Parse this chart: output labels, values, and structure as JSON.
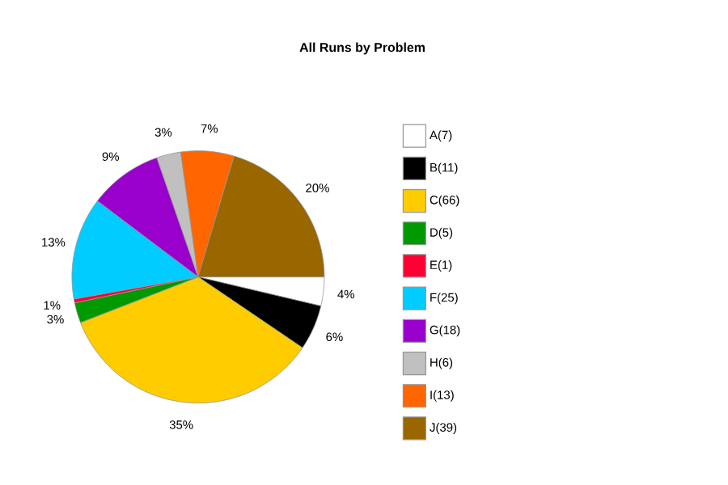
{
  "chart_data": {
    "type": "pie",
    "title": "All Runs by Problem",
    "categories": [
      "A(7)",
      "B(11)",
      "C(66)",
      "D(5)",
      "E(1)",
      "F(25)",
      "G(18)",
      "H(6)",
      "I(13)",
      "J(39)"
    ],
    "values": [
      3.7,
      5.8,
      34.6,
      2.6,
      0.5,
      13.1,
      9.4,
      3.1,
      6.8,
      20.4
    ],
    "value_labels": [
      "4%",
      "6%",
      "35%",
      "3%",
      "1%",
      "13%",
      "9%",
      "3%",
      "7%",
      "20%"
    ],
    "colors": [
      "#ffffff",
      "#000000",
      "#ffcc00",
      "#009900",
      "#ff0033",
      "#00ccff",
      "#9900cc",
      "#c0c0c0",
      "#ff6600",
      "#996600"
    ],
    "legend": "right"
  }
}
